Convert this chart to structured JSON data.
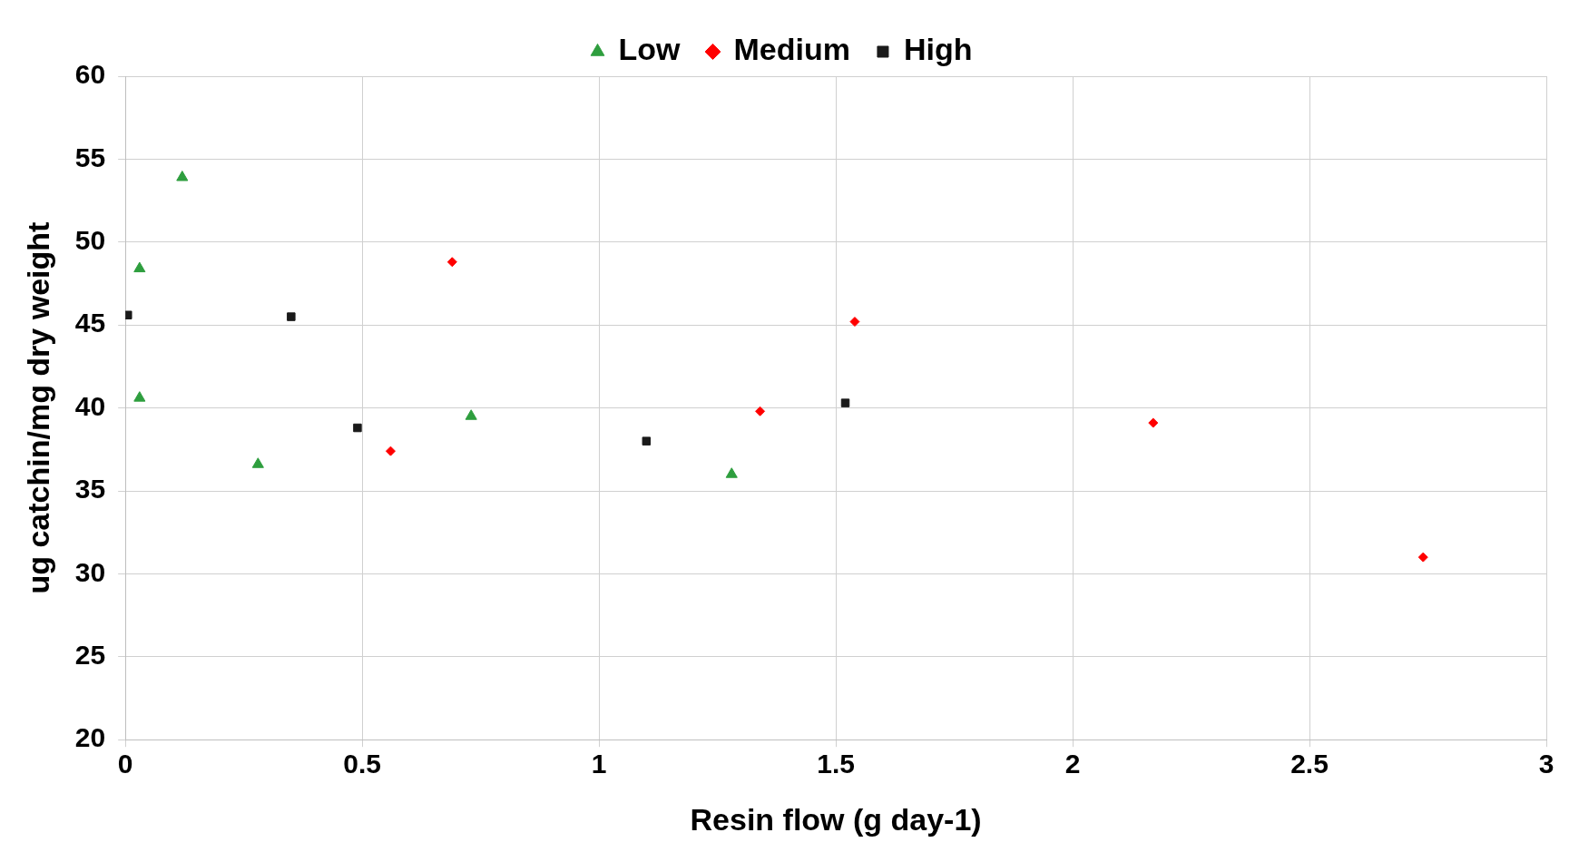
{
  "chart_data": {
    "type": "scatter",
    "xlabel": "Resin flow (g day-1)",
    "ylabel": "ug catchin/mg dry weight",
    "xlim": [
      0,
      3
    ],
    "xticks": [
      0,
      0.5,
      1,
      1.5,
      2,
      2.5,
      3
    ],
    "ylim": [
      20,
      60
    ],
    "yticks": [
      20,
      25,
      30,
      35,
      40,
      45,
      50,
      55,
      60
    ],
    "grid": true,
    "legend": "top",
    "series": [
      {
        "name": "Low",
        "color": "#2e9e3e",
        "marker": "triangle",
        "x": [
          0.12,
          0.03,
          0.03,
          0.28,
          0.73,
          1.28
        ],
        "values": [
          53.9,
          48.4,
          40.6,
          36.6,
          39.5,
          36.0
        ]
      },
      {
        "name": "Medium",
        "color": "#ff0000",
        "marker": "diamond",
        "x": [
          0.69,
          1.54,
          0.56,
          1.34,
          2.17,
          2.74
        ],
        "values": [
          48.8,
          45.2,
          37.4,
          39.8,
          39.1,
          31.0
        ]
      },
      {
        "name": "High",
        "color": "#1a1a1a",
        "marker": "square",
        "x": [
          0.005,
          0.35,
          0.49,
          1.1,
          1.52
        ],
        "values": [
          45.6,
          45.5,
          38.8,
          38.0,
          40.3
        ]
      }
    ]
  }
}
